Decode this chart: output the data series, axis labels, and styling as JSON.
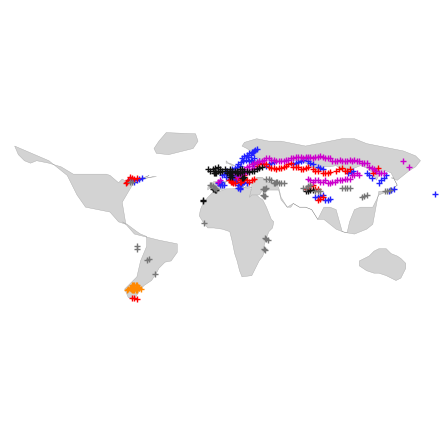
{
  "ocean_color": "#ffffff",
  "land_color": "#d3d3d3",
  "land_edge_color": "#aaaaaa",
  "land_edge_width": 0.3,
  "marker": "+",
  "markersize": 4,
  "linewidth": 1.0,
  "xlim": [
    -180,
    180
  ],
  "ylim": [
    -62,
    85
  ],
  "figsize": [
    4.4,
    4.4
  ],
  "dpi": 100,
  "colors": {
    "blue": "#2222ff",
    "red": "#ff0000",
    "magenta": "#cc00cc",
    "black": "#111111",
    "gray": "#777777",
    "orange": "#ff8800"
  },
  "blue_points": [
    [
      -74,
      45
    ],
    [
      -72,
      44
    ],
    [
      -70,
      43
    ],
    [
      -68,
      44
    ],
    [
      -66,
      45
    ],
    [
      -64,
      46
    ],
    [
      5,
      52
    ],
    [
      6,
      51
    ],
    [
      8,
      52
    ],
    [
      10,
      53
    ],
    [
      12,
      54
    ],
    [
      14,
      55
    ],
    [
      16,
      56
    ],
    [
      2,
      48
    ],
    [
      3,
      49
    ],
    [
      5,
      47
    ],
    [
      7,
      47
    ],
    [
      8,
      48
    ],
    [
      10,
      48
    ],
    [
      12,
      47
    ],
    [
      14,
      48
    ],
    [
      16,
      49
    ],
    [
      18,
      50
    ],
    [
      20,
      51
    ],
    [
      10,
      46
    ],
    [
      11,
      46
    ],
    [
      12,
      46
    ],
    [
      13,
      46
    ],
    [
      11,
      47
    ],
    [
      13,
      47
    ],
    [
      8,
      45
    ],
    [
      9,
      44
    ],
    [
      10,
      44
    ],
    [
      11,
      43
    ],
    [
      12,
      43
    ],
    [
      13,
      44
    ],
    [
      14,
      44
    ],
    [
      15,
      40
    ],
    [
      16,
      40
    ],
    [
      17,
      41
    ],
    [
      18,
      42
    ],
    [
      20,
      43
    ],
    [
      22,
      42
    ],
    [
      15,
      38
    ],
    [
      16,
      38
    ],
    [
      16,
      37
    ],
    [
      2,
      40
    ],
    [
      3,
      40
    ],
    [
      0,
      40
    ],
    [
      -2,
      42
    ],
    [
      -1,
      42
    ],
    [
      0,
      43
    ],
    [
      1,
      43
    ],
    [
      15,
      57
    ],
    [
      17,
      59
    ],
    [
      19,
      60
    ],
    [
      21,
      61
    ],
    [
      23,
      63
    ],
    [
      25,
      65
    ],
    [
      27,
      67
    ],
    [
      18,
      62
    ],
    [
      20,
      64
    ],
    [
      22,
      65
    ],
    [
      24,
      66
    ],
    [
      26,
      67
    ],
    [
      28,
      68
    ],
    [
      29,
      69
    ],
    [
      30,
      70
    ],
    [
      24,
      60
    ],
    [
      25,
      60
    ],
    [
      26,
      61
    ],
    [
      28,
      62
    ],
    [
      27,
      57
    ],
    [
      28,
      58
    ],
    [
      30,
      59
    ],
    [
      32,
      60
    ],
    [
      38,
      56
    ],
    [
      40,
      57
    ],
    [
      42,
      58
    ],
    [
      44,
      59
    ],
    [
      60,
      57
    ],
    [
      62,
      58
    ],
    [
      64,
      59
    ],
    [
      66,
      60
    ],
    [
      68,
      61
    ],
    [
      70,
      62
    ],
    [
      72,
      60
    ],
    [
      74,
      58
    ],
    [
      76,
      57
    ],
    [
      80,
      55
    ],
    [
      82,
      54
    ],
    [
      84,
      53
    ],
    [
      130,
      42
    ],
    [
      132,
      44
    ],
    [
      134,
      46
    ],
    [
      136,
      48
    ],
    [
      138,
      35
    ],
    [
      140,
      36
    ],
    [
      142,
      37
    ],
    [
      78,
      30
    ],
    [
      80,
      30
    ],
    [
      82,
      31
    ],
    [
      84,
      32
    ],
    [
      86,
      28
    ],
    [
      88,
      28
    ],
    [
      90,
      29
    ],
    [
      105,
      50
    ],
    [
      107,
      51
    ],
    [
      109,
      52
    ],
    [
      120,
      50
    ],
    [
      122,
      48
    ],
    [
      124,
      46
    ],
    [
      176,
      33
    ]
  ],
  "red_points": [
    [
      -74,
      47
    ],
    [
      -72,
      46
    ],
    [
      -70,
      45
    ],
    [
      -68,
      46
    ],
    [
      -75,
      44
    ],
    [
      -76,
      43
    ],
    [
      -77,
      42
    ],
    [
      7,
      44
    ],
    [
      8,
      44
    ],
    [
      9,
      43
    ],
    [
      10,
      43
    ],
    [
      11,
      42
    ],
    [
      12,
      42
    ],
    [
      14,
      46
    ],
    [
      15,
      46
    ],
    [
      16,
      46
    ],
    [
      18,
      47
    ],
    [
      20,
      48
    ],
    [
      16,
      43
    ],
    [
      17,
      43
    ],
    [
      18,
      44
    ],
    [
      19,
      44
    ],
    [
      20,
      45
    ],
    [
      22,
      44
    ],
    [
      24,
      43
    ],
    [
      26,
      44
    ],
    [
      28,
      45
    ],
    [
      30,
      56
    ],
    [
      32,
      57
    ],
    [
      34,
      58
    ],
    [
      36,
      57
    ],
    [
      38,
      57
    ],
    [
      40,
      55
    ],
    [
      42,
      54
    ],
    [
      44,
      54
    ],
    [
      46,
      53
    ],
    [
      48,
      54
    ],
    [
      50,
      54
    ],
    [
      52,
      55
    ],
    [
      54,
      56
    ],
    [
      56,
      57
    ],
    [
      58,
      58
    ],
    [
      60,
      55
    ],
    [
      62,
      55
    ],
    [
      64,
      55
    ],
    [
      66,
      53
    ],
    [
      68,
      53
    ],
    [
      70,
      54
    ],
    [
      72,
      55
    ],
    [
      76,
      53
    ],
    [
      78,
      52
    ],
    [
      80,
      52
    ],
    [
      84,
      50
    ],
    [
      86,
      50
    ],
    [
      88,
      50
    ],
    [
      90,
      51
    ],
    [
      95,
      52
    ],
    [
      97,
      53
    ],
    [
      100,
      54
    ],
    [
      102,
      52
    ],
    [
      104,
      52
    ],
    [
      106,
      53
    ],
    [
      125,
      50
    ],
    [
      127,
      52
    ],
    [
      129,
      54
    ],
    [
      80,
      28
    ],
    [
      82,
      29
    ],
    [
      84,
      30
    ],
    [
      70,
      37
    ],
    [
      72,
      38
    ],
    [
      74,
      39
    ],
    [
      76,
      40
    ],
    [
      78,
      37
    ],
    [
      80,
      37
    ],
    [
      -70,
      -52
    ],
    [
      -72,
      -52
    ],
    [
      -68,
      -53
    ]
  ],
  "magenta_points": [
    [
      10,
      50
    ],
    [
      12,
      50
    ],
    [
      14,
      51
    ],
    [
      16,
      52
    ],
    [
      18,
      52
    ],
    [
      20,
      53
    ],
    [
      22,
      55
    ],
    [
      24,
      56
    ],
    [
      26,
      57
    ],
    [
      28,
      58
    ],
    [
      30,
      59
    ],
    [
      32,
      60
    ],
    [
      34,
      60
    ],
    [
      36,
      61
    ],
    [
      38,
      62
    ],
    [
      40,
      62
    ],
    [
      42,
      61
    ],
    [
      44,
      61
    ],
    [
      46,
      60
    ],
    [
      48,
      60
    ],
    [
      50,
      60
    ],
    [
      52,
      60
    ],
    [
      54,
      61
    ],
    [
      56,
      61
    ],
    [
      58,
      62
    ],
    [
      60,
      62
    ],
    [
      62,
      63
    ],
    [
      64,
      63
    ],
    [
      66,
      63
    ],
    [
      68,
      62
    ],
    [
      70,
      63
    ],
    [
      72,
      63
    ],
    [
      74,
      63
    ],
    [
      76,
      62
    ],
    [
      78,
      63
    ],
    [
      80,
      63
    ],
    [
      82,
      64
    ],
    [
      84,
      63
    ],
    [
      86,
      62
    ],
    [
      88,
      62
    ],
    [
      90,
      62
    ],
    [
      92,
      60
    ],
    [
      94,
      60
    ],
    [
      96,
      60
    ],
    [
      98,
      61
    ],
    [
      100,
      60
    ],
    [
      102,
      60
    ],
    [
      104,
      60
    ],
    [
      106,
      61
    ],
    [
      108,
      60
    ],
    [
      110,
      61
    ],
    [
      112,
      60
    ],
    [
      114,
      60
    ],
    [
      116,
      58
    ],
    [
      118,
      58
    ],
    [
      120,
      58
    ],
    [
      122,
      55
    ],
    [
      124,
      54
    ],
    [
      126,
      53
    ],
    [
      128,
      52
    ],
    [
      130,
      50
    ],
    [
      132,
      50
    ],
    [
      134,
      50
    ],
    [
      88,
      42
    ],
    [
      90,
      42
    ],
    [
      92,
      43
    ],
    [
      94,
      43
    ],
    [
      96,
      44
    ],
    [
      98,
      44
    ],
    [
      100,
      44
    ],
    [
      102,
      45
    ],
    [
      104,
      45
    ],
    [
      106,
      45
    ],
    [
      108,
      48
    ],
    [
      110,
      48
    ],
    [
      112,
      50
    ],
    [
      114,
      48
    ],
    [
      72,
      45
    ],
    [
      74,
      44
    ],
    [
      76,
      43
    ],
    [
      78,
      44
    ],
    [
      80,
      44
    ],
    [
      82,
      43
    ],
    [
      84,
      43
    ],
    [
      86,
      44
    ],
    [
      14,
      47
    ],
    [
      16,
      48
    ],
    [
      18,
      49
    ],
    [
      20,
      50
    ],
    [
      22,
      51
    ],
    [
      24,
      52
    ],
    [
      26,
      53
    ],
    [
      28,
      54
    ],
    [
      30,
      54
    ],
    [
      -2,
      43
    ],
    [
      0,
      44
    ],
    [
      150,
      60
    ],
    [
      155,
      55
    ]
  ],
  "black_points": [
    [
      -10,
      53
    ],
    [
      -8,
      52
    ],
    [
      -6,
      53
    ],
    [
      -4,
      54
    ],
    [
      -2,
      55
    ],
    [
      0,
      53
    ],
    [
      2,
      52
    ],
    [
      4,
      53
    ],
    [
      6,
      52
    ],
    [
      8,
      53
    ],
    [
      -4,
      52
    ],
    [
      -2,
      52
    ],
    [
      0,
      51
    ],
    [
      -5,
      50
    ],
    [
      -4,
      50
    ],
    [
      -3,
      50
    ],
    [
      10,
      52
    ],
    [
      12,
      52
    ],
    [
      14,
      52
    ],
    [
      16,
      53
    ],
    [
      18,
      53
    ],
    [
      8,
      51
    ],
    [
      10,
      51
    ],
    [
      12,
      51
    ],
    [
      6,
      50
    ],
    [
      7,
      50
    ],
    [
      8,
      50
    ],
    [
      8,
      47
    ],
    [
      9,
      48
    ],
    [
      10,
      47
    ],
    [
      14,
      50
    ],
    [
      15,
      50
    ],
    [
      16,
      50
    ],
    [
      18,
      51
    ],
    [
      20,
      52
    ],
    [
      22,
      52
    ],
    [
      24,
      51
    ],
    [
      26,
      52
    ],
    [
      28,
      52
    ],
    [
      30,
      53
    ],
    [
      32,
      54
    ],
    [
      34,
      55
    ],
    [
      -14,
      28
    ],
    [
      -14,
      27
    ],
    [
      70,
      35
    ],
    [
      72,
      35
    ],
    [
      74,
      36
    ],
    [
      76,
      36
    ],
    [
      -6,
      37
    ],
    [
      -5,
      37
    ],
    [
      -4,
      36
    ],
    [
      -3,
      36
    ],
    [
      18,
      46
    ],
    [
      19,
      46
    ],
    [
      20,
      47
    ]
  ],
  "gray_points": [
    [
      -8,
      40
    ],
    [
      -7,
      40
    ],
    [
      -6,
      39
    ],
    [
      -5,
      38
    ],
    [
      -4,
      38
    ],
    [
      -3,
      37
    ],
    [
      -72,
      43
    ],
    [
      -74,
      43
    ],
    [
      35,
      37
    ],
    [
      36,
      37
    ],
    [
      37,
      37
    ],
    [
      38,
      38
    ],
    [
      35,
      32
    ],
    [
      36,
      31
    ],
    [
      37,
      31
    ],
    [
      44,
      42
    ],
    [
      45,
      42
    ],
    [
      46,
      43
    ],
    [
      47,
      43
    ],
    [
      48,
      42
    ],
    [
      50,
      42
    ],
    [
      52,
      42
    ],
    [
      38,
      45
    ],
    [
      40,
      45
    ],
    [
      42,
      44
    ],
    [
      100,
      38
    ],
    [
      102,
      38
    ],
    [
      104,
      38
    ],
    [
      106,
      38
    ],
    [
      68,
      38
    ],
    [
      70,
      38
    ],
    [
      72,
      39
    ],
    [
      74,
      40
    ],
    [
      78,
      35
    ],
    [
      80,
      35
    ],
    [
      82,
      35
    ],
    [
      -13,
      9
    ],
    [
      37,
      -3
    ],
    [
      38,
      -4
    ],
    [
      39,
      -5
    ],
    [
      36,
      -12
    ],
    [
      37,
      -13
    ],
    [
      -68,
      -10
    ],
    [
      -68,
      -12
    ],
    [
      -58,
      -20
    ],
    [
      -60,
      -21
    ],
    [
      -53,
      -33
    ],
    [
      135,
      35
    ],
    [
      137,
      35
    ],
    [
      139,
      36
    ],
    [
      116,
      30
    ],
    [
      118,
      31
    ],
    [
      120,
      32
    ]
  ],
  "orange_points": [
    [
      -72,
      -42
    ],
    [
      -72,
      -43
    ],
    [
      -71,
      -42
    ],
    [
      -70,
      -42
    ],
    [
      -70,
      -43
    ],
    [
      -69,
      -42
    ],
    [
      -68,
      -42
    ],
    [
      -67,
      -43
    ],
    [
      -66,
      -44
    ],
    [
      -65,
      -45
    ],
    [
      -73,
      -44
    ],
    [
      -73,
      -45
    ],
    [
      -72,
      -44
    ],
    [
      -72,
      -45
    ],
    [
      -74,
      -44
    ],
    [
      -75,
      -45
    ],
    [
      -76,
      -46
    ],
    [
      -71,
      -44
    ],
    [
      -70,
      -44
    ],
    [
      -69,
      -44
    ],
    [
      -68,
      -44
    ],
    [
      -68,
      -46
    ],
    [
      -69,
      -46
    ],
    [
      -70,
      -46
    ],
    [
      -71,
      -46
    ],
    [
      -72,
      -46
    ]
  ]
}
